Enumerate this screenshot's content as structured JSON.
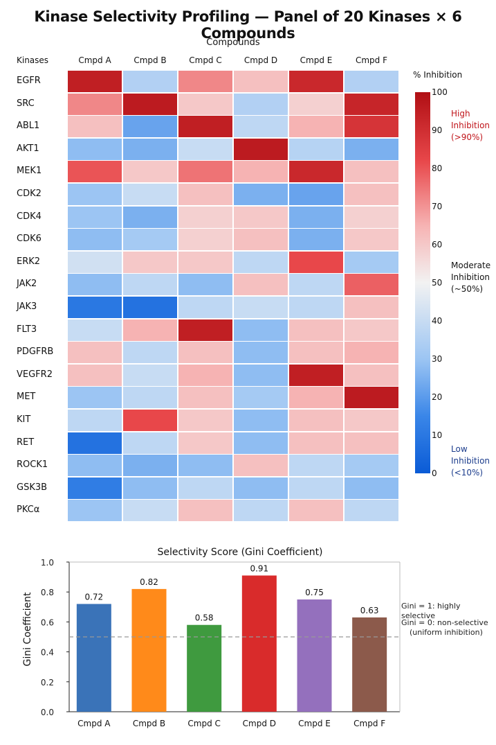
{
  "title": "Kinase Selectivity Profiling — Panel of 20 Kinases × 6 Compounds",
  "heatmap": {
    "column_group_label": "Compounds",
    "row_header": "Kinases",
    "compounds": [
      "Cmpd A",
      "Cmpd B",
      "Cmpd C",
      "Cmpd D",
      "Cmpd E",
      "Cmpd F"
    ],
    "kinases": [
      "EGFR",
      "SRC",
      "ABL1",
      "AKT1",
      "MEK1",
      "CDK2",
      "CDK4",
      "CDK6",
      "ERK2",
      "JAK2",
      "JAK3",
      "FLT3",
      "PDGFRB",
      "VEGFR2",
      "MET",
      "KIT",
      "RET",
      "ROCK1",
      "GSK3B",
      "PKCα"
    ]
  },
  "colorbar": {
    "title": "% Inhibition",
    "ticks": [
      "100",
      "90",
      "80",
      "70",
      "60",
      "50",
      "40",
      "30",
      "20",
      "10",
      "0"
    ],
    "high_note": [
      "High",
      "Inhibition",
      "(>90%)"
    ],
    "mid_note": [
      "Moderate",
      "Inhibition",
      "(~50%)"
    ],
    "low_note": [
      "Low",
      "Inhibition",
      "(<10%)"
    ],
    "high_color": "#c0141a",
    "low_color": "#1b3c8c"
  },
  "gini_chart": {
    "title": "Selectivity Score (Gini Coefficient)",
    "ylabel": "Gini Coefficient",
    "y_ticks": [
      "0.0",
      "0.2",
      "0.4",
      "0.6",
      "0.8",
      "1.0"
    ],
    "legend_notes": [
      "Gini = 1: highly selective",
      "Gini = 0: non-selective",
      "(uniform inhibition)"
    ]
  },
  "chart_data": [
    {
      "type": "heatmap",
      "title": "Kinase Selectivity Profiling — Panel of 20 Kinases × 6 Compounds",
      "xlabel": "Compounds",
      "ylabel": "Kinases",
      "colorbar_label": "% Inhibition",
      "value_range": [
        0,
        100
      ],
      "x": [
        "Cmpd A",
        "Cmpd B",
        "Cmpd C",
        "Cmpd D",
        "Cmpd E",
        "Cmpd F"
      ],
      "y": [
        "EGFR",
        "SRC",
        "ABL1",
        "AKT1",
        "MEK1",
        "CDK2",
        "CDK4",
        "CDK6",
        "ERK2",
        "JAK2",
        "JAK3",
        "FLT3",
        "PDGFRB",
        "VEGFR2",
        "MET",
        "KIT",
        "RET",
        "ROCK1",
        "GSK3B",
        "PKCα"
      ],
      "values": [
        [
          95,
          35,
          72,
          62,
          92,
          35
        ],
        [
          72,
          96,
          60,
          35,
          58,
          93
        ],
        [
          62,
          22,
          95,
          38,
          65,
          88
        ],
        [
          28,
          25,
          40,
          96,
          36,
          25
        ],
        [
          80,
          60,
          75,
          65,
          92,
          62
        ],
        [
          30,
          40,
          62,
          25,
          22,
          62
        ],
        [
          30,
          25,
          58,
          60,
          25,
          58
        ],
        [
          28,
          32,
          58,
          62,
          25,
          60
        ],
        [
          42,
          60,
          60,
          38,
          82,
          32
        ],
        [
          28,
          38,
          28,
          62,
          38,
          78
        ],
        [
          10,
          8,
          38,
          40,
          38,
          62
        ],
        [
          40,
          65,
          95,
          28,
          62,
          60
        ],
        [
          62,
          38,
          62,
          28,
          62,
          65
        ],
        [
          62,
          40,
          65,
          28,
          95,
          62
        ],
        [
          30,
          38,
          62,
          32,
          65,
          96
        ],
        [
          38,
          82,
          60,
          28,
          62,
          60
        ],
        [
          8,
          38,
          60,
          28,
          62,
          62
        ],
        [
          28,
          25,
          28,
          62,
          38,
          32
        ],
        [
          12,
          28,
          38,
          28,
          38,
          28
        ],
        [
          30,
          40,
          62,
          38,
          62,
          38
        ]
      ]
    },
    {
      "type": "bar",
      "title": "Selectivity Score (Gini Coefficient)",
      "xlabel": "",
      "ylabel": "Gini Coefficient",
      "ylim": [
        0,
        1
      ],
      "categories": [
        "Cmpd A",
        "Cmpd B",
        "Cmpd C",
        "Cmpd D",
        "Cmpd E",
        "Cmpd F"
      ],
      "values": [
        0.72,
        0.82,
        0.58,
        0.91,
        0.75,
        0.63
      ],
      "labels": [
        "0.72",
        "0.82",
        "0.58",
        "0.91",
        "0.75",
        "0.63"
      ],
      "colors": [
        "#3a73b8",
        "#ff8a1a",
        "#3f9a3f",
        "#d92b2b",
        "#9470bd",
        "#8c5a4b"
      ],
      "reference_line": 0.5
    }
  ]
}
